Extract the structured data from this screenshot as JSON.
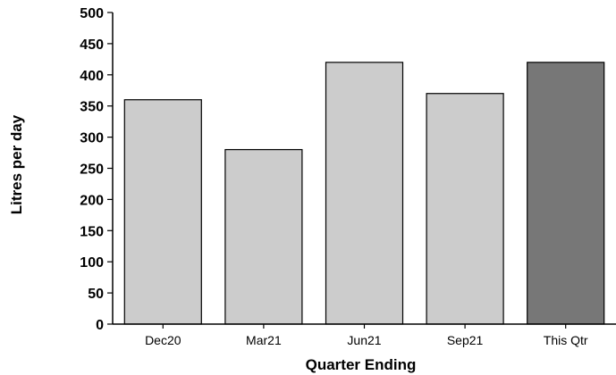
{
  "chart_data": {
    "type": "bar",
    "title": "",
    "xlabel": "Quarter Ending",
    "ylabel": "Litres per day",
    "categories": [
      "Dec20",
      "Mar21",
      "Jun21",
      "Sep21",
      "This Qtr"
    ],
    "values": [
      360,
      280,
      420,
      370,
      420
    ],
    "ylim": [
      0,
      500
    ],
    "yticks": [
      0,
      50,
      100,
      150,
      200,
      250,
      300,
      350,
      400,
      450,
      500
    ],
    "grid": false,
    "legend": "none",
    "colors": {
      "default": "#cccccc",
      "highlight": "#777777",
      "edge": "#000000"
    },
    "highlight_index": 4
  }
}
